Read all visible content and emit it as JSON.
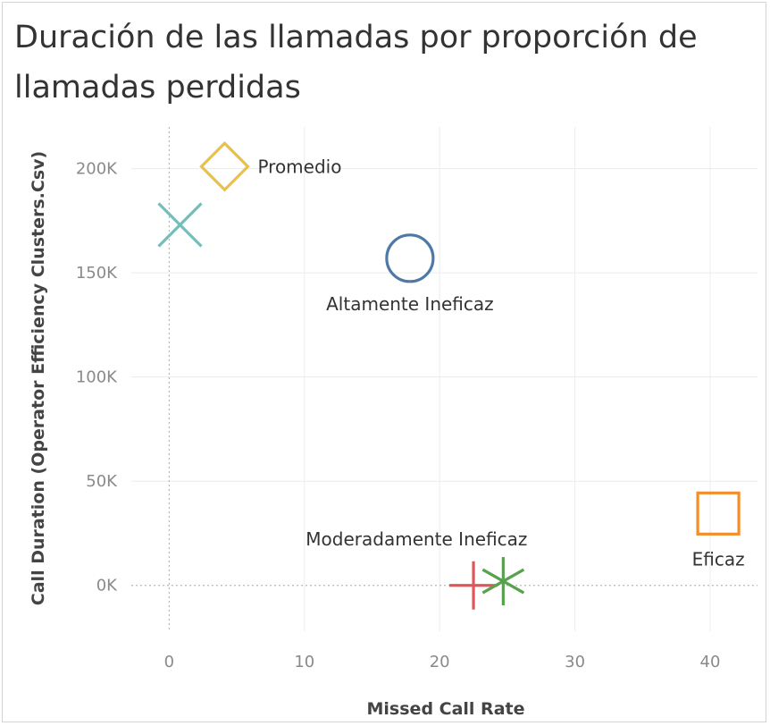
{
  "chart_data": {
    "type": "scatter",
    "title": "Duración de las llamadas por proporción de llamadas perdidas",
    "xlabel": "Missed Call Rate",
    "ylabel": "Call Duration (Operator Efficiency Clusters.Csv)",
    "xlim": [
      -2.8,
      43.5
    ],
    "ylim": [
      -22000,
      220000
    ],
    "x_ticks": [
      0,
      10,
      20,
      30,
      40
    ],
    "x_tick_labels": [
      "0",
      "10",
      "20",
      "30",
      "40"
    ],
    "y_ticks": [
      0,
      50000,
      100000,
      150000,
      200000
    ],
    "y_tick_labels": [
      "0K",
      "50K",
      "100K",
      "150K",
      "200K"
    ],
    "grid": true,
    "zero_lines": true,
    "points": [
      {
        "label": "Promedio",
        "x": 4.1,
        "y": 201000,
        "shape": "diamond",
        "color": "#E8C14A",
        "label_pos": "right"
      },
      {
        "label": "",
        "x": 0.8,
        "y": 173000,
        "shape": "x",
        "color": "#76BDBA",
        "label_pos": "none"
      },
      {
        "label": "Altamente Ineficaz",
        "x": 17.8,
        "y": 157000,
        "shape": "circle",
        "color": "#4E79A7",
        "label_pos": "below"
      },
      {
        "label": "Eficaz",
        "x": 40.6,
        "y": 34500,
        "shape": "square",
        "color": "#F28E2B",
        "label_pos": "below"
      },
      {
        "label": "",
        "x": 22.5,
        "y": 0,
        "shape": "plus",
        "color": "#E15759",
        "label_pos": "none"
      },
      {
        "label": "Moderadamente Ineficaz",
        "x": 24.7,
        "y": 2000,
        "shape": "asterisk",
        "color": "#59A14F",
        "label_pos": "above"
      }
    ]
  }
}
